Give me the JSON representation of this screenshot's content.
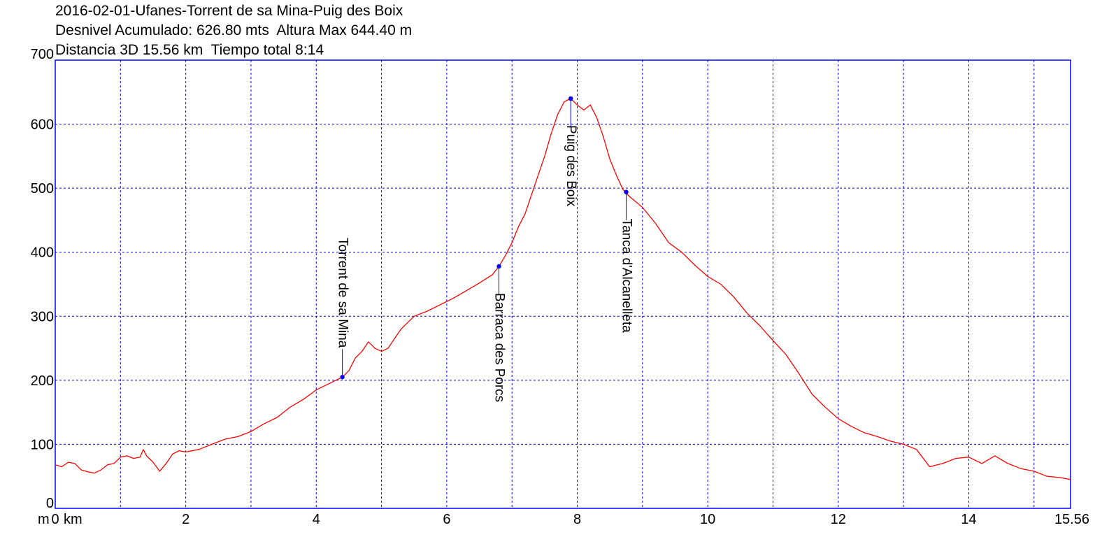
{
  "chart_data": {
    "type": "line",
    "title_lines": [
      "2016-02-01-Ufanes-Torrent de sa Mina-Puig des Boix",
      "Desnivel Acumulado: 626.80 mts  Altura Max 644.40 m",
      "Distancia 3D 15.56 km  Tiempo total 8:14"
    ],
    "xlabel_unit": "km",
    "ylabel_unit": "m",
    "xlim": [
      0,
      15.56
    ],
    "ylim": [
      0,
      700
    ],
    "x_ticks": [
      "0",
      "2",
      "4",
      "6",
      "8",
      "10",
      "12",
      "14",
      "15.56"
    ],
    "y_ticks": [
      "0",
      "100",
      "200",
      "300",
      "400",
      "500",
      "600",
      "700"
    ],
    "grid": true,
    "colors": {
      "line": "#ff0000",
      "frame": "#0000ff",
      "grid": "#0000ff",
      "waypoint": "#0000ff"
    },
    "series": [
      {
        "x": [
          0,
          0.1,
          0.2,
          0.3,
          0.4,
          0.5,
          0.6,
          0.7,
          0.8,
          0.9,
          1.0,
          1.1,
          1.2,
          1.3,
          1.35,
          1.4,
          1.5,
          1.6,
          1.7,
          1.8,
          1.9,
          2.0,
          2.2,
          2.4,
          2.6,
          2.8,
          3.0,
          3.2,
          3.4,
          3.6,
          3.8,
          4.0,
          4.2,
          4.4,
          4.5,
          4.6,
          4.7,
          4.8,
          4.9,
          5.0,
          5.1,
          5.2,
          5.3,
          5.4,
          5.5,
          5.7,
          5.9,
          6.1,
          6.3,
          6.5,
          6.7,
          6.8,
          6.9,
          7.0,
          7.1,
          7.2,
          7.3,
          7.4,
          7.5,
          7.6,
          7.7,
          7.8,
          7.9,
          8.0,
          8.1,
          8.2,
          8.3,
          8.4,
          8.5,
          8.6,
          8.7,
          8.8,
          9.0,
          9.2,
          9.4,
          9.6,
          9.8,
          10.0,
          10.2,
          10.4,
          10.6,
          10.8,
          11.0,
          11.2,
          11.4,
          11.6,
          11.8,
          12.0,
          12.2,
          12.4,
          12.6,
          12.8,
          13.0,
          13.2,
          13.4,
          13.6,
          13.8,
          14.0,
          14.2,
          14.4,
          14.6,
          14.8,
          15.0,
          15.2,
          15.4,
          15.56
        ],
        "y": [
          68,
          65,
          72,
          70,
          60,
          57,
          55,
          60,
          68,
          70,
          80,
          82,
          78,
          80,
          92,
          82,
          72,
          58,
          70,
          85,
          90,
          88,
          92,
          100,
          108,
          112,
          120,
          132,
          142,
          158,
          170,
          185,
          195,
          205,
          215,
          235,
          245,
          260,
          250,
          245,
          250,
          265,
          280,
          290,
          300,
          308,
          318,
          328,
          340,
          352,
          365,
          378,
          395,
          415,
          440,
          460,
          490,
          520,
          550,
          585,
          615,
          635,
          640,
          630,
          622,
          630,
          610,
          580,
          545,
          520,
          498,
          487,
          470,
          445,
          415,
          400,
          380,
          362,
          350,
          330,
          305,
          285,
          262,
          240,
          210,
          178,
          158,
          140,
          128,
          118,
          112,
          105,
          100,
          92,
          65,
          70,
          78,
          80,
          70,
          82,
          70,
          62,
          58,
          50,
          48,
          45
        ]
      }
    ],
    "waypoints": [
      {
        "label": "Torrent de sa Mina",
        "x": 4.4,
        "y": 205,
        "label_side": "above"
      },
      {
        "label": "Barraca des Porcs",
        "x": 6.8,
        "y": 378,
        "label_side": "below"
      },
      {
        "label": "Puig des Boix",
        "x": 7.9,
        "y": 640,
        "label_side": "below"
      },
      {
        "label": "Tanca d'Alcanelleta",
        "x": 8.75,
        "y": 494,
        "label_side": "below"
      }
    ]
  }
}
